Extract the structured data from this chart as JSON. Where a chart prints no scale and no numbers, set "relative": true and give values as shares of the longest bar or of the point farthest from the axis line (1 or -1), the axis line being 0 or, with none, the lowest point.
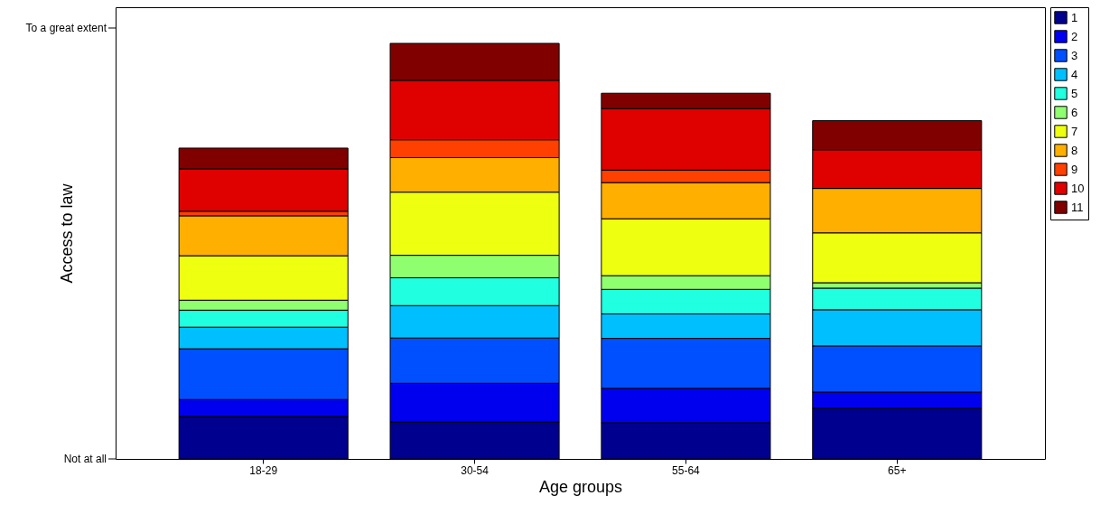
{
  "chart_data": {
    "type": "bar",
    "stacked": true,
    "relative": true,
    "xlabel": "Age groups",
    "ylabel": "Access to law",
    "categories": [
      "18-29",
      "30-54",
      "55-64",
      "65+"
    ],
    "annotations": [
      "Not at all",
      "To a great extent"
    ],
    "legend": "top right",
    "series": [
      {
        "name": "1",
        "color": "#00008f",
        "values": [
          0.102,
          0.089,
          0.087,
          0.122
        ]
      },
      {
        "name": "2",
        "color": "#0000ef",
        "values": [
          0.041,
          0.093,
          0.083,
          0.039
        ]
      },
      {
        "name": "3",
        "color": "#0050ff",
        "values": [
          0.122,
          0.109,
          0.12,
          0.111
        ]
      },
      {
        "name": "4",
        "color": "#00bfff",
        "values": [
          0.052,
          0.078,
          0.059,
          0.087
        ]
      },
      {
        "name": "5",
        "color": "#20ffdf",
        "values": [
          0.041,
          0.067,
          0.059,
          0.052
        ]
      },
      {
        "name": "6",
        "color": "#8fff70",
        "values": [
          0.024,
          0.054,
          0.033,
          0.013
        ]
      },
      {
        "name": "7",
        "color": "#efff10",
        "values": [
          0.107,
          0.152,
          0.137,
          0.12
        ]
      },
      {
        "name": "8",
        "color": "#ffaf00",
        "values": [
          0.096,
          0.083,
          0.087,
          0.107
        ]
      },
      {
        "name": "9",
        "color": "#ff4000",
        "values": [
          0.011,
          0.043,
          0.03,
          0
        ]
      },
      {
        "name": "10",
        "color": "#df0000",
        "values": [
          0.102,
          0.143,
          0.148,
          0.093
        ]
      },
      {
        "name": "11",
        "color": "#800000",
        "values": [
          0.05,
          0.089,
          0.037,
          0.07
        ]
      }
    ]
  }
}
